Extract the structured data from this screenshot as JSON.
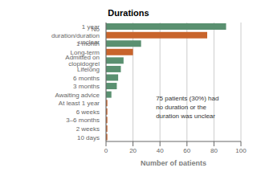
{
  "chart_data": {
    "type": "bar",
    "orientation": "horizontal",
    "title": "Durations",
    "xlabel": "Number of patients",
    "categories": [
      "10 days",
      "2 weeks",
      "3–6 months",
      "6 weeks",
      "At least 1 year",
      "Awaiting advice",
      "3 months",
      "6 months",
      "Lifelong",
      "Admitted on clopidogrel",
      "Long-term",
      "1 month",
      "No duration/duration unclear",
      "1 year"
    ],
    "values": [
      1,
      1,
      1,
      1,
      1,
      4,
      8,
      9,
      11,
      13,
      20,
      26,
      75,
      89
    ],
    "colors": [
      "#c8642c",
      "#c8642c",
      "#c8642c",
      "#c8642c",
      "#c8642c",
      "#5a9070",
      "#5a9070",
      "#5a9070",
      "#5a9070",
      "#5a9070",
      "#c8642c",
      "#5a9070",
      "#c8642c",
      "#5a9070"
    ],
    "xlim": [
      0,
      100
    ],
    "xticks": [
      0,
      20,
      40,
      60,
      80,
      100
    ],
    "annotation": "75 patients (30%) had\nno duration or the\nduration was unclear",
    "grid": true
  }
}
